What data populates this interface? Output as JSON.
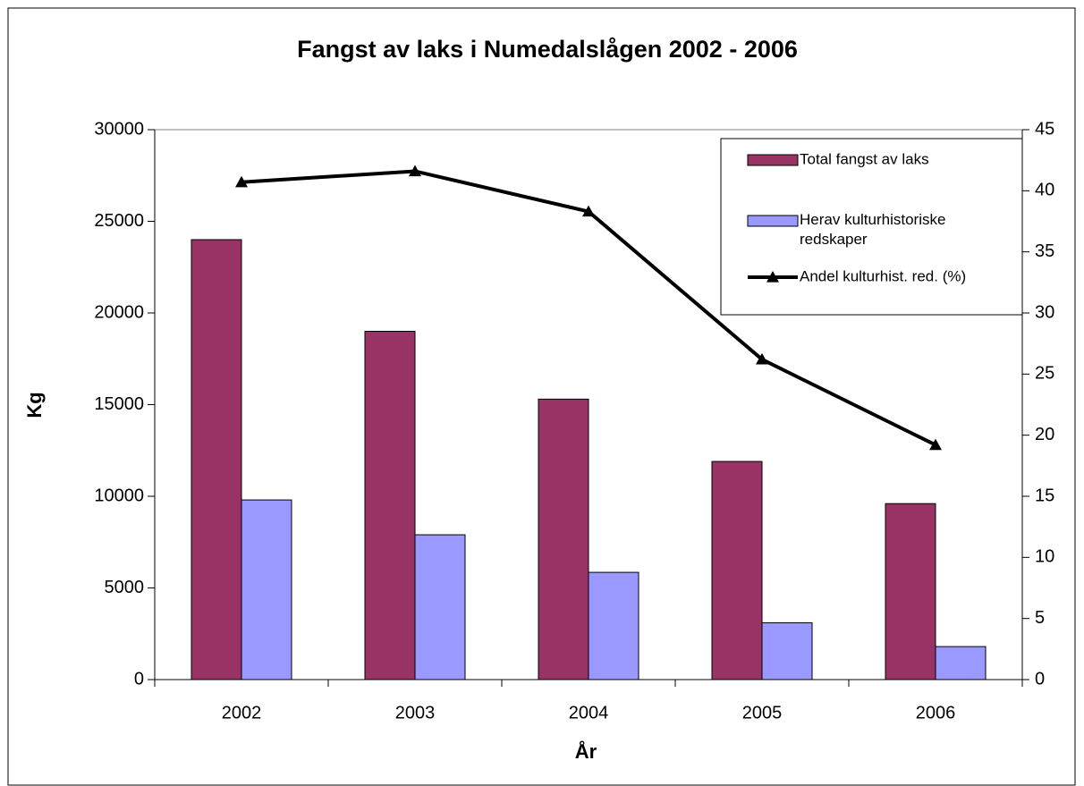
{
  "chart_data": {
    "type": "bar",
    "title": "Fangst av laks i Numedalslågen 2002 - 2006",
    "x_label": "År",
    "y_label": "Kg",
    "categories": [
      "2002",
      "2003",
      "2004",
      "2005",
      "2006"
    ],
    "series": [
      {
        "name": "Total fangst av laks",
        "color": "#993366",
        "type": "bar",
        "values": [
          24000,
          19000,
          15300,
          11900,
          9600
        ]
      },
      {
        "name": "Herav kulturhistoriske redskaper",
        "color": "#9999ff",
        "type": "bar",
        "values": [
          9800,
          7900,
          5850,
          3100,
          1800
        ]
      },
      {
        "name": "Andel kulturhist. red. (%)",
        "color": "#000000",
        "type": "line",
        "axis": "y2",
        "values": [
          40.7,
          41.6,
          38.3,
          26.2,
          19.2
        ]
      }
    ],
    "ylim": [
      0,
      30000
    ],
    "yticks": [
      0,
      5000,
      10000,
      15000,
      20000,
      25000,
      30000
    ],
    "y2lim": [
      0,
      45
    ],
    "y2ticks": [
      0,
      5,
      10,
      15,
      20,
      25,
      30,
      35,
      40,
      45
    ],
    "legend": "top-right",
    "grid": false
  }
}
